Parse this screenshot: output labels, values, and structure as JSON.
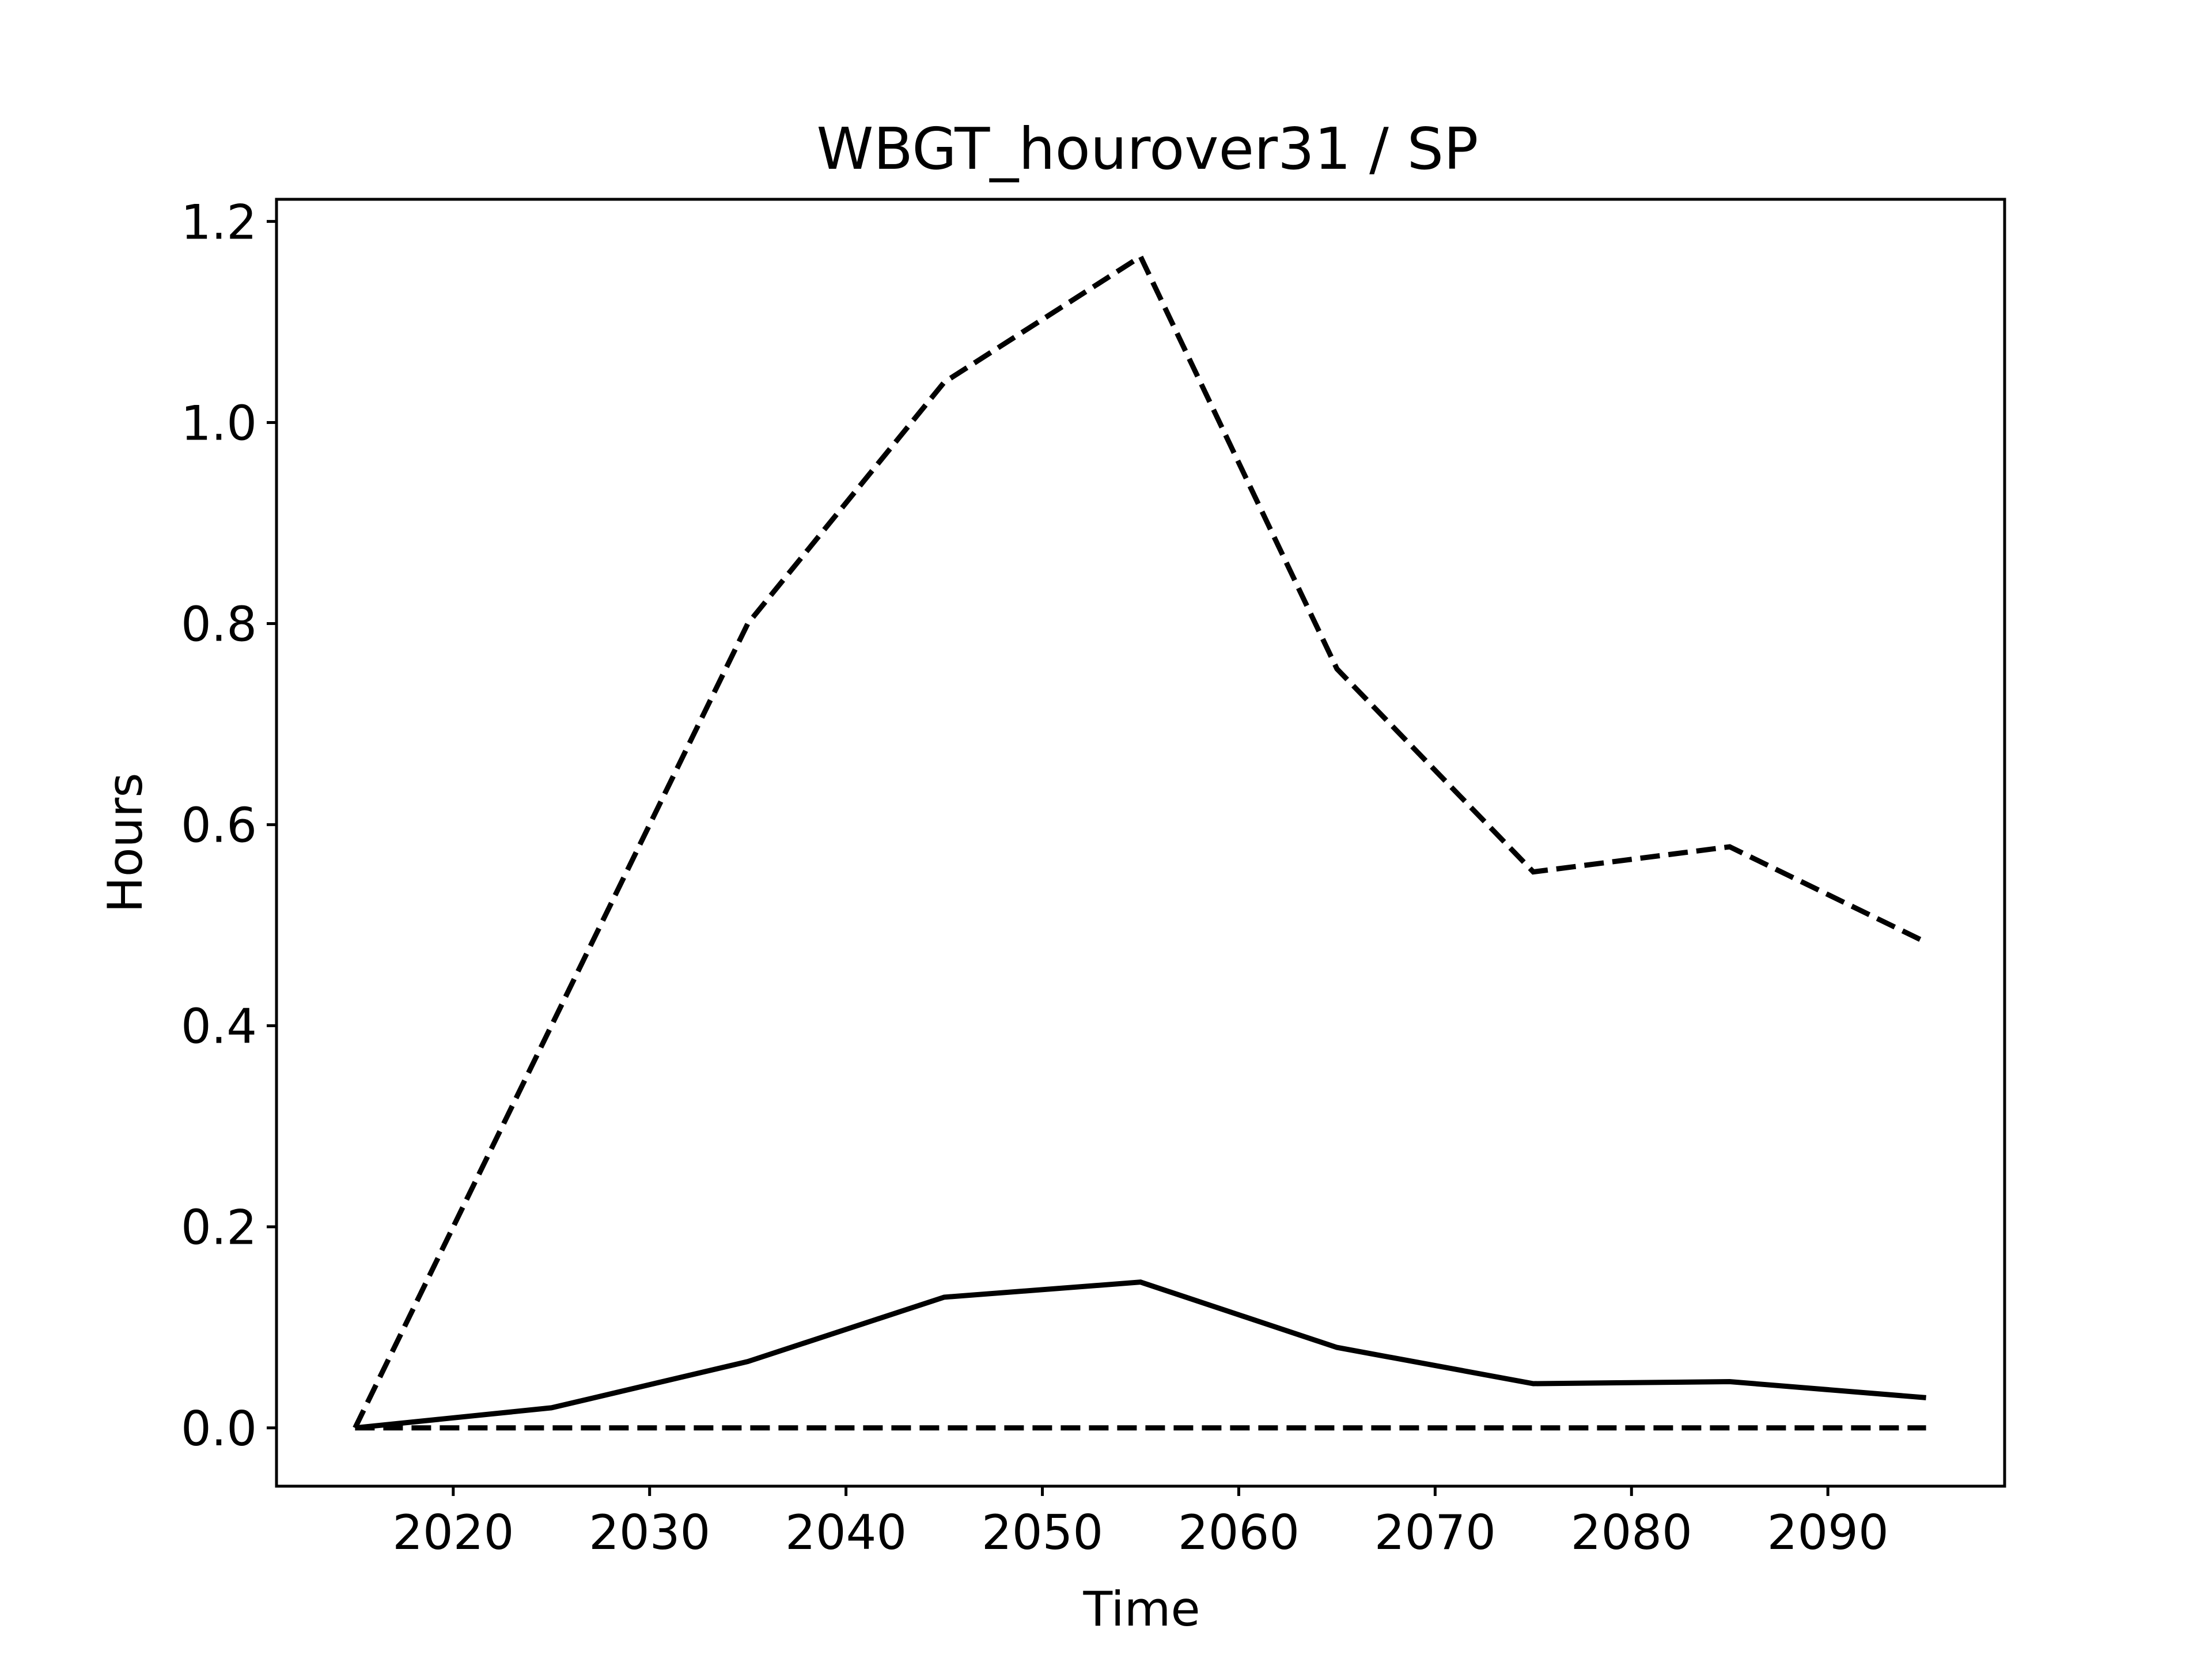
{
  "chart_data": {
    "type": "line",
    "title": "WBGT_hourover31 / SP",
    "xlabel": "Time",
    "ylabel": "Hours",
    "xlim": [
      2011,
      2099
    ],
    "ylim": [
      -0.058,
      1.222
    ],
    "grid": false,
    "legend": "none",
    "x": [
      2015,
      2025,
      2035,
      2045,
      2055,
      2065,
      2075,
      2085,
      2095
    ],
    "xticks": [
      2020,
      2030,
      2040,
      2050,
      2060,
      2070,
      2080,
      2090
    ],
    "xtick_labels": [
      "2020",
      "2030",
      "2040",
      "2050",
      "2060",
      "2070",
      "2080",
      "2090"
    ],
    "yticks": [
      0.0,
      0.2,
      0.4,
      0.6,
      0.8,
      1.0,
      1.2
    ],
    "ytick_labels": [
      "0.0",
      "0.2",
      "0.4",
      "0.6",
      "0.8",
      "1.0",
      "1.2"
    ],
    "series": [
      {
        "style": "solid",
        "color": "#000000",
        "values": [
          0.0,
          0.02,
          0.066,
          0.13,
          0.145,
          0.08,
          0.044,
          0.046,
          0.03
        ]
      },
      {
        "style": "dashed",
        "color": "#000000",
        "values": [
          0.0,
          0.4,
          0.8,
          1.04,
          1.165,
          0.755,
          0.553,
          0.578,
          0.483
        ]
      },
      {
        "style": "dashed",
        "color": "#000000",
        "values": [
          0.0,
          0.0,
          0.0,
          0.0,
          0.0,
          0.0,
          0.0,
          0.0,
          0.0
        ]
      }
    ]
  }
}
